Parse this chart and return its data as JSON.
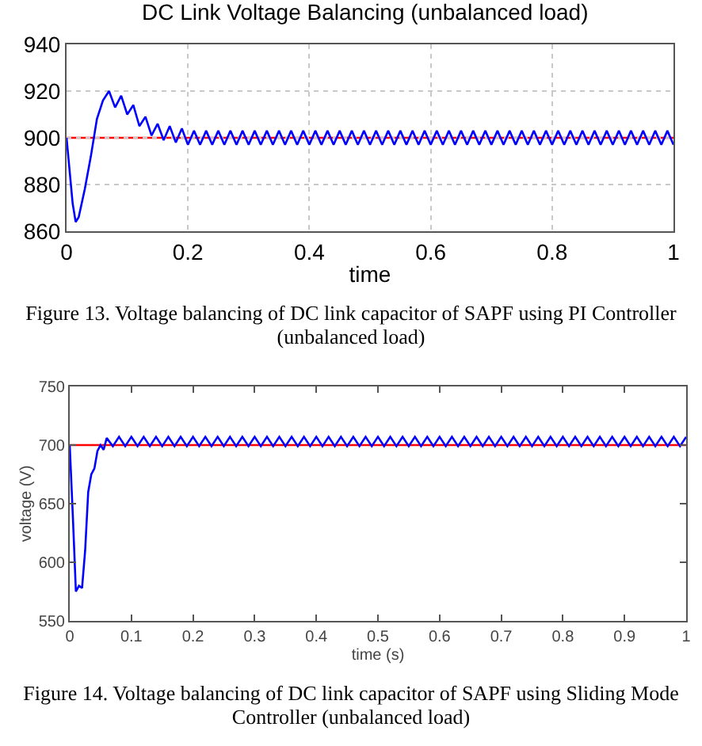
{
  "chart_data": [
    {
      "type": "line",
      "title": "DC Link Voltage Balancing (unbalanced load)",
      "xlabel": "time",
      "x": [
        0,
        0.01,
        0.015,
        0.02,
        0.03,
        0.04,
        0.05,
        0.06,
        0.07,
        0.08,
        0.09,
        0.1,
        0.11,
        0.12,
        0.13,
        0.14,
        0.15,
        0.16,
        0.17,
        0.18,
        0.19,
        0.2,
        0.21,
        0.22,
        0.23,
        0.24,
        0.25,
        0.26,
        0.27,
        0.28,
        0.29,
        0.3,
        0.31,
        0.32,
        0.33,
        0.34,
        0.35,
        0.36,
        0.37,
        0.38,
        0.39,
        0.4,
        0.41,
        0.42,
        0.43,
        0.44,
        0.45,
        0.46,
        0.47,
        0.48,
        0.49,
        0.5,
        0.51,
        0.52,
        0.53,
        0.54,
        0.55,
        0.56,
        0.57,
        0.58,
        0.59,
        0.6,
        0.61,
        0.62,
        0.63,
        0.64,
        0.65,
        0.66,
        0.67,
        0.68,
        0.69,
        0.7,
        0.71,
        0.72,
        0.73,
        0.74,
        0.75,
        0.76,
        0.77,
        0.78,
        0.79,
        0.8,
        0.81,
        0.82,
        0.83,
        0.84,
        0.85,
        0.86,
        0.87,
        0.88,
        0.89,
        0.9,
        0.91,
        0.92,
        0.93,
        0.94,
        0.95,
        0.96,
        0.97,
        0.98,
        0.99,
        1
      ],
      "series": [
        {
          "color": "#0000ff",
          "values": [
            900,
            872,
            864,
            866,
            878,
            892,
            908,
            916,
            920,
            913,
            918,
            910,
            914,
            905,
            909,
            901,
            906,
            899,
            905,
            898,
            904,
            897,
            903,
            897,
            903,
            897,
            903,
            897,
            903,
            897,
            903,
            897,
            903,
            897,
            903,
            897,
            903,
            897,
            903,
            897,
            903,
            897,
            903,
            897,
            903,
            897,
            903,
            897,
            903,
            897,
            903,
            897,
            903,
            897,
            903,
            897,
            903,
            897,
            903,
            897,
            903,
            897,
            903,
            897,
            903,
            897,
            903,
            897,
            903,
            897,
            903,
            897,
            903,
            897,
            903,
            897,
            903,
            897,
            903,
            897,
            903,
            897,
            903,
            897,
            903,
            897,
            903,
            897,
            903,
            897,
            903,
            897,
            903,
            897,
            903,
            897,
            903,
            897,
            903,
            897,
            903,
            897
          ]
        }
      ],
      "xlim": [
        0,
        1
      ],
      "xticks": [
        0,
        0.2,
        0.4,
        0.6,
        0.8,
        1
      ],
      "ylim": [
        860,
        940
      ],
      "yticks": [
        860,
        880,
        900,
        920,
        940
      ],
      "grid": true,
      "ref_lines": [
        {
          "axis": "y",
          "value": 900,
          "color": "#ff0000"
        }
      ],
      "annotations": [
        "Figure 13. Voltage balancing of DC link capacitor of SAPF using PI Controller (unbalanced load)"
      ]
    },
    {
      "type": "line",
      "xlabel": "time (s)",
      "ylabel": "voltage (V)",
      "x": [
        0,
        0.005,
        0.01,
        0.015,
        0.02,
        0.025,
        0.03,
        0.035,
        0.04,
        0.045,
        0.05,
        0.055,
        0.06,
        0.07,
        0.08,
        0.09,
        0.1,
        0.11,
        0.12,
        0.13,
        0.14,
        0.15,
        0.16,
        0.17,
        0.18,
        0.19,
        0.2,
        0.21,
        0.22,
        0.23,
        0.24,
        0.25,
        0.26,
        0.27,
        0.28,
        0.29,
        0.3,
        0.31,
        0.32,
        0.33,
        0.34,
        0.35,
        0.36,
        0.37,
        0.38,
        0.39,
        0.4,
        0.41,
        0.42,
        0.43,
        0.44,
        0.45,
        0.46,
        0.47,
        0.48,
        0.49,
        0.5,
        0.51,
        0.52,
        0.53,
        0.54,
        0.55,
        0.56,
        0.57,
        0.58,
        0.59,
        0.6,
        0.61,
        0.62,
        0.63,
        0.64,
        0.65,
        0.66,
        0.67,
        0.68,
        0.69,
        0.7,
        0.71,
        0.72,
        0.73,
        0.74,
        0.75,
        0.76,
        0.77,
        0.78,
        0.79,
        0.8,
        0.81,
        0.82,
        0.83,
        0.84,
        0.85,
        0.86,
        0.87,
        0.88,
        0.89,
        0.9,
        0.91,
        0.92,
        0.93,
        0.94,
        0.95,
        0.96,
        0.97,
        0.98,
        0.99,
        1
      ],
      "series": [
        {
          "color": "#0000ff",
          "values": [
            700,
            640,
            575,
            580,
            578,
            610,
            660,
            675,
            680,
            695,
            700,
            696,
            706,
            699,
            707,
            699,
            707,
            699,
            707,
            699,
            707,
            699,
            707,
            699,
            707,
            699,
            707,
            699,
            707,
            699,
            707,
            699,
            707,
            699,
            707,
            699,
            707,
            699,
            707,
            699,
            707,
            699,
            707,
            699,
            707,
            699,
            707,
            699,
            707,
            699,
            707,
            699,
            707,
            699,
            707,
            699,
            707,
            699,
            707,
            699,
            707,
            699,
            707,
            699,
            707,
            699,
            707,
            699,
            707,
            699,
            707,
            699,
            707,
            699,
            707,
            699,
            707,
            699,
            707,
            699,
            707,
            699,
            707,
            699,
            707,
            699,
            707,
            699,
            707,
            699,
            707,
            699,
            707,
            699,
            707,
            699,
            707,
            699,
            707,
            699,
            707,
            699,
            707,
            699,
            707,
            699,
            707
          ]
        }
      ],
      "xlim": [
        0,
        1
      ],
      "xticks": [
        0,
        0.1,
        0.2,
        0.3,
        0.4,
        0.5,
        0.6,
        0.7,
        0.8,
        0.9,
        1
      ],
      "ylim": [
        550,
        750
      ],
      "yticks": [
        550,
        600,
        650,
        700,
        750
      ],
      "ref_lines": [
        {
          "axis": "y",
          "value": 700,
          "color": "#ff0000"
        }
      ],
      "annotations": [
        "Figure 14. Voltage balancing of DC link capacitor of SAPF using Sliding Mode Controller (unbalanced load)"
      ]
    }
  ]
}
